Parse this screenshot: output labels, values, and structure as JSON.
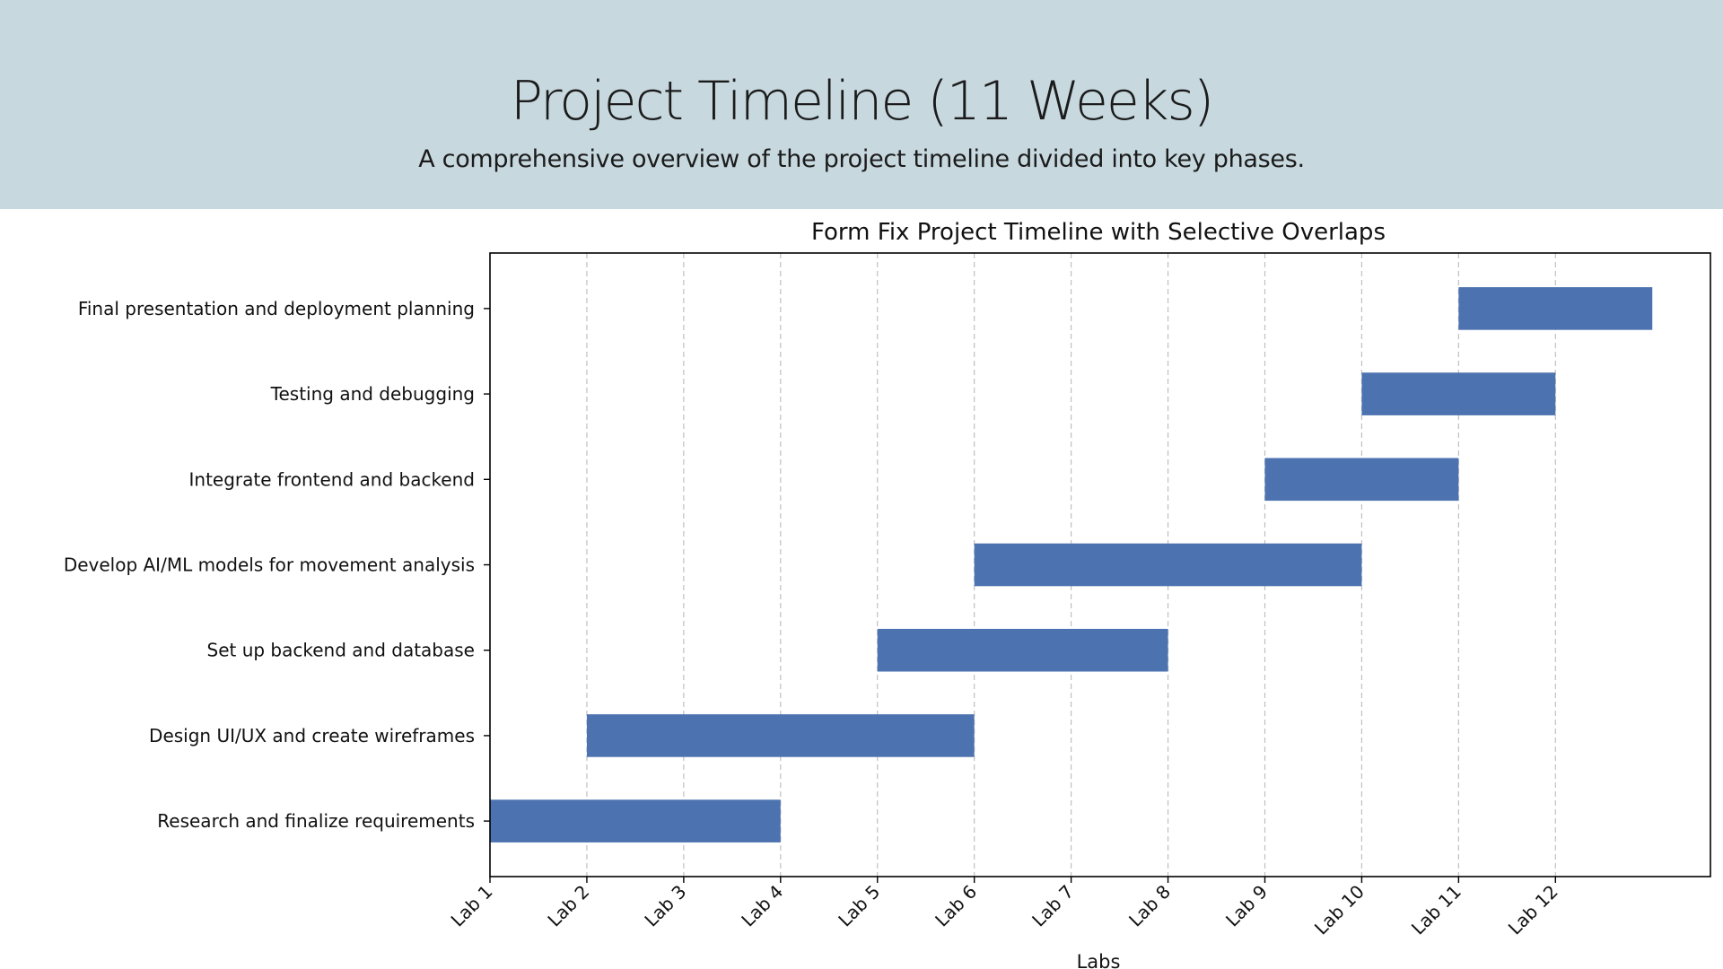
{
  "header": {
    "title": "Project Timeline (11 Weeks)",
    "subtitle": "A comprehensive overview of the project timeline divided into key phases."
  },
  "colors": {
    "header_background": "#c7d8df",
    "bar": "#4c72b0",
    "grid": "#b0b0b0"
  },
  "chart_data": {
    "type": "bar",
    "orientation": "horizontal",
    "title": "Form Fix Project Timeline with Selective Overlaps",
    "xlabel": "Labs",
    "ylabel": "",
    "xticks": [
      "Lab 1",
      "Lab 2",
      "Lab 3",
      "Lab 4",
      "Lab 5",
      "Lab 6",
      "Lab 7",
      "Lab 8",
      "Lab 9",
      "Lab 10",
      "Lab 11",
      "Lab 12"
    ],
    "xlim": [
      1,
      13.6
    ],
    "grid": "vertical dashed",
    "tasks": [
      {
        "name": "Research and finalize requirements",
        "start": 1,
        "end": 4
      },
      {
        "name": "Design UI/UX and create wireframes",
        "start": 2,
        "end": 6
      },
      {
        "name": "Set up backend and database",
        "start": 5,
        "end": 8
      },
      {
        "name": "Develop AI/ML models for movement analysis",
        "start": 6,
        "end": 10
      },
      {
        "name": "Integrate frontend and backend",
        "start": 9,
        "end": 11
      },
      {
        "name": "Testing and debugging",
        "start": 10,
        "end": 12
      },
      {
        "name": "Final presentation and deployment planning",
        "start": 11,
        "end": 13
      }
    ]
  }
}
